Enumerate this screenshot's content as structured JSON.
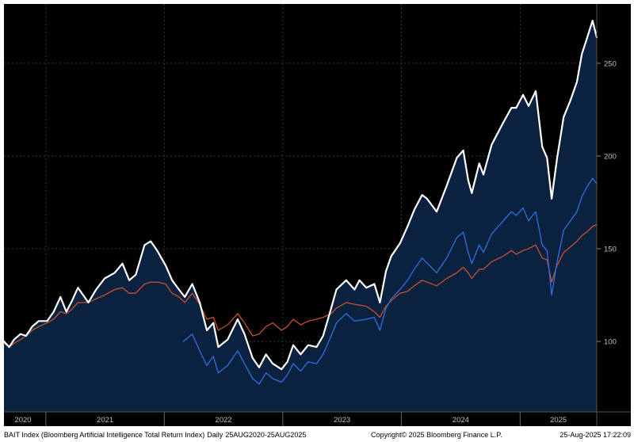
{
  "colors": {
    "plot_bg": "#000000",
    "area_fill": "#0a2140",
    "grid": "#3a3a3a",
    "axis_text": "#bfbfbf",
    "bait_line": "#ffffff",
    "blue_line": "#2f6fe0",
    "orange_line": "#c7512a"
  },
  "footer": {
    "index_name": "BAIT Index (Bloomberg Artificial Intelligence Total Return Index)",
    "frequency": "Daily",
    "date_range": "25AUG2020-25AUG2025",
    "copyright": "Copyright© 2025 Bloomberg Finance L.P.",
    "timestamp": "25-Aug-2025 17:22:09"
  },
  "chart_data": {
    "type": "line",
    "xlim": [
      "2020-08-25",
      "2025-08-25"
    ],
    "ylim": [
      62,
      282
    ],
    "y_ticks": [
      100,
      150,
      200,
      250
    ],
    "x_ticks": [
      {
        "label": "2020",
        "date": "2020-08-25"
      },
      {
        "label": "2021",
        "date": "2021-01-01"
      },
      {
        "label": "2022",
        "date": "2022-01-01"
      },
      {
        "label": "2023",
        "date": "2023-01-01"
      },
      {
        "label": "2024",
        "date": "2024-01-01"
      },
      {
        "label": "2025",
        "date": "2025-01-01"
      }
    ],
    "grid": true,
    "series": [
      {
        "id": "bait",
        "filled": true,
        "points": [
          [
            "2020-08-25",
            100
          ],
          [
            "2020-09-10",
            97
          ],
          [
            "2020-09-25",
            101
          ],
          [
            "2020-10-15",
            104
          ],
          [
            "2020-11-01",
            103
          ],
          [
            "2020-11-20",
            108
          ],
          [
            "2020-12-10",
            111
          ],
          [
            "2021-01-05",
            111
          ],
          [
            "2021-01-25",
            116
          ],
          [
            "2021-02-15",
            124
          ],
          [
            "2021-03-05",
            116
          ],
          [
            "2021-03-20",
            121
          ],
          [
            "2021-04-10",
            129
          ],
          [
            "2021-05-12",
            121
          ],
          [
            "2021-06-05",
            128
          ],
          [
            "2021-07-01",
            134
          ],
          [
            "2021-08-01",
            137
          ],
          [
            "2021-08-25",
            142
          ],
          [
            "2021-09-15",
            133
          ],
          [
            "2021-10-05",
            136
          ],
          [
            "2021-11-01",
            152
          ],
          [
            "2021-11-20",
            154
          ],
          [
            "2021-12-10",
            149
          ],
          [
            "2022-01-05",
            141
          ],
          [
            "2022-01-25",
            133
          ],
          [
            "2022-02-15",
            128
          ],
          [
            "2022-03-05",
            124
          ],
          [
            "2022-03-28",
            131
          ],
          [
            "2022-04-20",
            121
          ],
          [
            "2022-05-12",
            106
          ],
          [
            "2022-06-01",
            110
          ],
          [
            "2022-06-16",
            97
          ],
          [
            "2022-07-15",
            101
          ],
          [
            "2022-08-15",
            112
          ],
          [
            "2022-09-05",
            104
          ],
          [
            "2022-09-30",
            91
          ],
          [
            "2022-10-20",
            86
          ],
          [
            "2022-11-10",
            93
          ],
          [
            "2022-12-01",
            88
          ],
          [
            "2022-12-28",
            85
          ],
          [
            "2023-01-15",
            89
          ],
          [
            "2023-02-02",
            98
          ],
          [
            "2023-02-25",
            93
          ],
          [
            "2023-03-20",
            98
          ],
          [
            "2023-04-15",
            97
          ],
          [
            "2023-05-05",
            103
          ],
          [
            "2023-05-30",
            118
          ],
          [
            "2023-06-15",
            128
          ],
          [
            "2023-07-15",
            133
          ],
          [
            "2023-08-10",
            128
          ],
          [
            "2023-08-25",
            133
          ],
          [
            "2023-09-15",
            129
          ],
          [
            "2023-10-10",
            131
          ],
          [
            "2023-10-27",
            121
          ],
          [
            "2023-11-15",
            138
          ],
          [
            "2023-12-01",
            146
          ],
          [
            "2023-12-28",
            153
          ],
          [
            "2024-01-20",
            162
          ],
          [
            "2024-02-10",
            171
          ],
          [
            "2024-03-05",
            179
          ],
          [
            "2024-03-20",
            177
          ],
          [
            "2024-04-19",
            170
          ],
          [
            "2024-05-20",
            184
          ],
          [
            "2024-06-20",
            199
          ],
          [
            "2024-07-10",
            203
          ],
          [
            "2024-07-25",
            187
          ],
          [
            "2024-08-05",
            180
          ],
          [
            "2024-08-28",
            196
          ],
          [
            "2024-09-10",
            190
          ],
          [
            "2024-10-05",
            206
          ],
          [
            "2024-11-10",
            218
          ],
          [
            "2024-12-05",
            226
          ],
          [
            "2024-12-20",
            226
          ],
          [
            "2025-01-10",
            233
          ],
          [
            "2025-01-27",
            227
          ],
          [
            "2025-02-18",
            235
          ],
          [
            "2025-03-10",
            205
          ],
          [
            "2025-03-25",
            199
          ],
          [
            "2025-04-08",
            177
          ],
          [
            "2025-04-25",
            199
          ],
          [
            "2025-05-15",
            221
          ],
          [
            "2025-06-05",
            230
          ],
          [
            "2025-06-25",
            240
          ],
          [
            "2025-07-10",
            255
          ],
          [
            "2025-07-25",
            263
          ],
          [
            "2025-08-12",
            273
          ],
          [
            "2025-08-25",
            264
          ]
        ]
      },
      {
        "id": "blue",
        "filled": false,
        "points": [
          [
            "2022-03-01",
            100
          ],
          [
            "2022-03-28",
            104
          ],
          [
            "2022-04-20",
            95
          ],
          [
            "2022-05-12",
            87
          ],
          [
            "2022-06-01",
            92
          ],
          [
            "2022-06-16",
            83
          ],
          [
            "2022-07-15",
            87
          ],
          [
            "2022-08-15",
            95
          ],
          [
            "2022-09-05",
            88
          ],
          [
            "2022-09-30",
            80
          ],
          [
            "2022-10-20",
            77
          ],
          [
            "2022-11-10",
            83
          ],
          [
            "2022-12-01",
            80
          ],
          [
            "2022-12-28",
            78
          ],
          [
            "2023-01-15",
            82
          ],
          [
            "2023-02-02",
            88
          ],
          [
            "2023-02-25",
            84
          ],
          [
            "2023-03-20",
            89
          ],
          [
            "2023-04-15",
            88
          ],
          [
            "2023-05-05",
            93
          ],
          [
            "2023-05-30",
            103
          ],
          [
            "2023-06-15",
            110
          ],
          [
            "2023-07-15",
            115
          ],
          [
            "2023-08-10",
            111
          ],
          [
            "2023-09-15",
            112
          ],
          [
            "2023-10-10",
            113
          ],
          [
            "2023-10-27",
            106
          ],
          [
            "2023-11-15",
            118
          ],
          [
            "2023-12-01",
            123
          ],
          [
            "2023-12-28",
            128
          ],
          [
            "2024-01-20",
            133
          ],
          [
            "2024-02-10",
            139
          ],
          [
            "2024-03-05",
            145
          ],
          [
            "2024-04-19",
            137
          ],
          [
            "2024-05-20",
            145
          ],
          [
            "2024-06-20",
            156
          ],
          [
            "2024-07-10",
            159
          ],
          [
            "2024-07-25",
            148
          ],
          [
            "2024-08-05",
            142
          ],
          [
            "2024-08-28",
            152
          ],
          [
            "2024-09-10",
            148
          ],
          [
            "2024-10-05",
            158
          ],
          [
            "2024-11-10",
            165
          ],
          [
            "2024-12-05",
            170
          ],
          [
            "2024-12-20",
            168
          ],
          [
            "2025-01-10",
            172
          ],
          [
            "2025-01-27",
            165
          ],
          [
            "2025-02-18",
            170
          ],
          [
            "2025-03-10",
            152
          ],
          [
            "2025-03-25",
            149
          ],
          [
            "2025-04-08",
            125
          ],
          [
            "2025-04-25",
            143
          ],
          [
            "2025-05-15",
            160
          ],
          [
            "2025-06-05",
            165
          ],
          [
            "2025-06-25",
            170
          ],
          [
            "2025-07-10",
            178
          ],
          [
            "2025-07-25",
            183
          ],
          [
            "2025-08-12",
            188
          ],
          [
            "2025-08-25",
            185
          ]
        ]
      },
      {
        "id": "orange",
        "filled": false,
        "points": [
          [
            "2020-08-25",
            99
          ],
          [
            "2020-09-10",
            97
          ],
          [
            "2020-09-25",
            99
          ],
          [
            "2020-10-15",
            101
          ],
          [
            "2020-11-01",
            103
          ],
          [
            "2020-11-20",
            106
          ],
          [
            "2020-12-10",
            108
          ],
          [
            "2021-01-05",
            110
          ],
          [
            "2021-01-25",
            112
          ],
          [
            "2021-02-15",
            116
          ],
          [
            "2021-03-05",
            115
          ],
          [
            "2021-03-20",
            117
          ],
          [
            "2021-04-10",
            121
          ],
          [
            "2021-05-12",
            121
          ],
          [
            "2021-06-05",
            123
          ],
          [
            "2021-07-01",
            125
          ],
          [
            "2021-08-01",
            128
          ],
          [
            "2021-08-25",
            129
          ],
          [
            "2021-09-15",
            126
          ],
          [
            "2021-10-05",
            126
          ],
          [
            "2021-11-01",
            131
          ],
          [
            "2021-11-20",
            132
          ],
          [
            "2021-12-10",
            132
          ],
          [
            "2022-01-05",
            131
          ],
          [
            "2022-01-25",
            126
          ],
          [
            "2022-02-15",
            124
          ],
          [
            "2022-03-05",
            121
          ],
          [
            "2022-03-28",
            126
          ],
          [
            "2022-04-20",
            120
          ],
          [
            "2022-05-12",
            112
          ],
          [
            "2022-06-01",
            113
          ],
          [
            "2022-06-16",
            106
          ],
          [
            "2022-07-15",
            109
          ],
          [
            "2022-08-15",
            115
          ],
          [
            "2022-09-05",
            110
          ],
          [
            "2022-09-30",
            103
          ],
          [
            "2022-10-20",
            104
          ],
          [
            "2022-11-10",
            108
          ],
          [
            "2022-12-01",
            110
          ],
          [
            "2022-12-28",
            106
          ],
          [
            "2023-01-15",
            108
          ],
          [
            "2023-02-02",
            112
          ],
          [
            "2023-02-25",
            109
          ],
          [
            "2023-03-20",
            111
          ],
          [
            "2023-04-15",
            112
          ],
          [
            "2023-05-05",
            113
          ],
          [
            "2023-05-30",
            115
          ],
          [
            "2023-06-15",
            118
          ],
          [
            "2023-07-15",
            121
          ],
          [
            "2023-08-10",
            120
          ],
          [
            "2023-09-15",
            119
          ],
          [
            "2023-10-10",
            116
          ],
          [
            "2023-10-27",
            113
          ],
          [
            "2023-11-15",
            119
          ],
          [
            "2023-12-01",
            122
          ],
          [
            "2023-12-28",
            126
          ],
          [
            "2024-01-20",
            127
          ],
          [
            "2024-02-10",
            130
          ],
          [
            "2024-03-05",
            133
          ],
          [
            "2024-04-19",
            130
          ],
          [
            "2024-05-20",
            134
          ],
          [
            "2024-06-20",
            137
          ],
          [
            "2024-07-10",
            140
          ],
          [
            "2024-07-25",
            137
          ],
          [
            "2024-08-05",
            134
          ],
          [
            "2024-08-28",
            139
          ],
          [
            "2024-09-10",
            139
          ],
          [
            "2024-10-05",
            143
          ],
          [
            "2024-11-10",
            146
          ],
          [
            "2024-12-05",
            149
          ],
          [
            "2024-12-20",
            147
          ],
          [
            "2025-01-10",
            149
          ],
          [
            "2025-01-27",
            150
          ],
          [
            "2025-02-18",
            152
          ],
          [
            "2025-03-10",
            145
          ],
          [
            "2025-03-25",
            144
          ],
          [
            "2025-04-08",
            132
          ],
          [
            "2025-04-25",
            141
          ],
          [
            "2025-05-15",
            148
          ],
          [
            "2025-06-05",
            151
          ],
          [
            "2025-06-25",
            154
          ],
          [
            "2025-07-10",
            157
          ],
          [
            "2025-07-25",
            159
          ],
          [
            "2025-08-12",
            162
          ],
          [
            "2025-08-25",
            163
          ]
        ]
      }
    ]
  }
}
